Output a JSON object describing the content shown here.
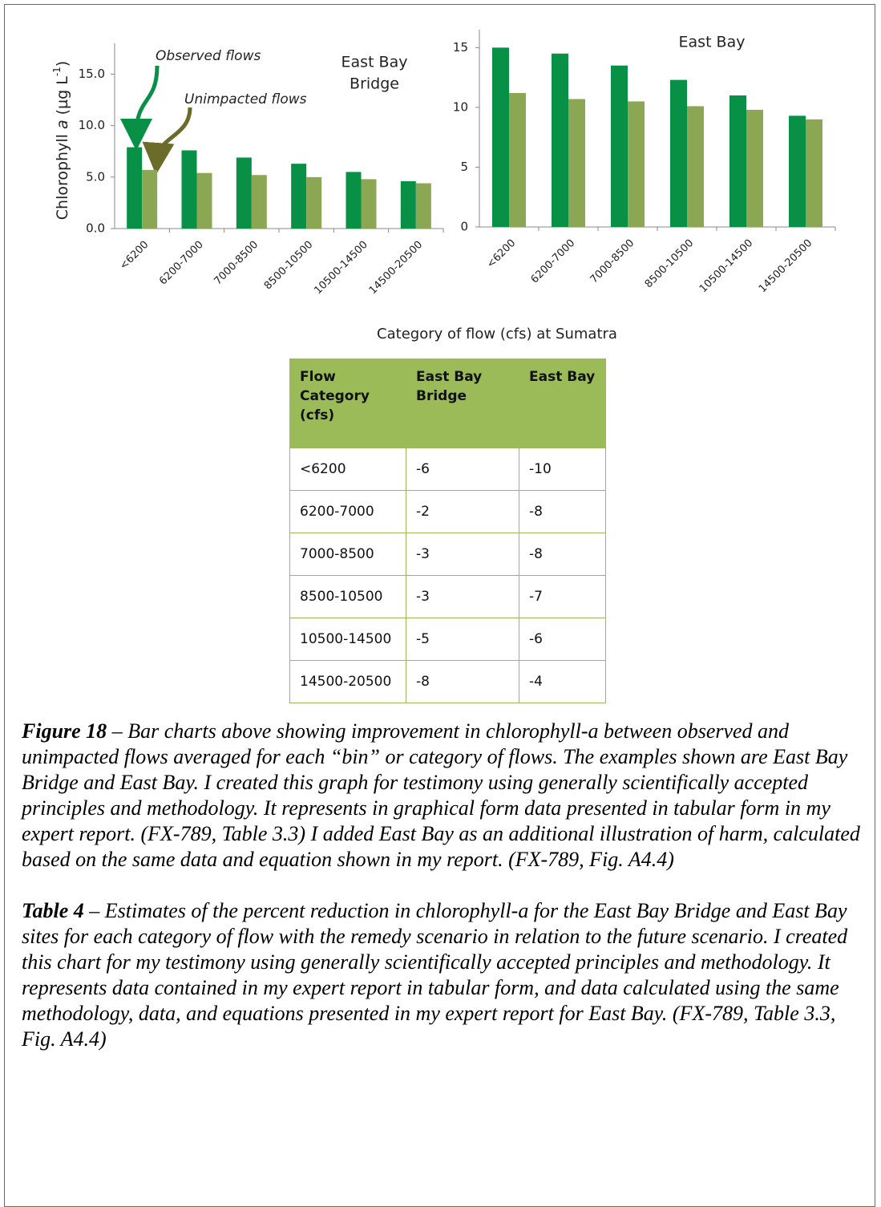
{
  "chart_data": [
    {
      "type": "bar",
      "title": [
        "East Bay",
        "Bridge"
      ],
      "ylabel": [
        "Chlorophyll ",
        "a",
        " (µg L",
        "-1",
        ")"
      ],
      "annotations": [
        "Observed flows",
        "Unimpacted flows"
      ],
      "categories": [
        "<6200",
        "6200-7000",
        "7000-8500",
        "8500-10500",
        "10500-14500",
        "14500-20500"
      ],
      "series": [
        {
          "name": "Observed flows",
          "color": "#089146",
          "values": [
            7.9,
            7.6,
            6.9,
            6.3,
            5.5,
            4.6
          ]
        },
        {
          "name": "Unimpacted flows",
          "color": "#8ba754",
          "values": [
            5.7,
            5.4,
            5.2,
            5.0,
            4.8,
            4.4
          ]
        }
      ],
      "ylim": [
        0,
        18
      ],
      "yticks": [
        {
          "value": 0,
          "label": "0.0"
        },
        {
          "value": 5,
          "label": "5.0"
        },
        {
          "value": 10,
          "label": "10.0"
        },
        {
          "value": 15,
          "label": "15.0"
        }
      ]
    },
    {
      "type": "bar",
      "title": [
        "East Bay"
      ],
      "categories": [
        "<6200",
        "6200-7000",
        "7000-8500",
        "8500-10500",
        "10500-14500",
        "14500-20500"
      ],
      "series": [
        {
          "name": "Observed flows",
          "color": "#089146",
          "values": [
            15.0,
            14.5,
            13.5,
            12.3,
            11.0,
            9.3
          ]
        },
        {
          "name": "Unimpacted flows",
          "color": "#8ba754",
          "values": [
            11.2,
            10.7,
            10.5,
            10.1,
            9.8,
            9.0
          ]
        }
      ],
      "ylim": [
        0,
        16.5
      ],
      "yticks": [
        0,
        5,
        10,
        15
      ]
    }
  ],
  "x_axis_label": "Category of flow (cfs) at Sumatra",
  "table": {
    "header": [
      [
        "Flow",
        "Category",
        "(cfs)"
      ],
      [
        "East Bay",
        "Bridge"
      ],
      [
        "East Bay"
      ]
    ],
    "rows": [
      [
        "<6200",
        "-6",
        "-10"
      ],
      [
        "6200-7000",
        "-2",
        "-8"
      ],
      [
        "7000-8500",
        "-3",
        "-8"
      ],
      [
        "8500-10500",
        "-3",
        "-7"
      ],
      [
        "10500-14500",
        "-5",
        "-6"
      ],
      [
        "14500-20500",
        "-8",
        "-4"
      ]
    ]
  },
  "captions": [
    {
      "lead": "Figure 18",
      "text": " – Bar charts above showing improvement in chlorophyll-a between observed and unimpacted flows averaged for each “bin” or category of flows. The examples shown are East Bay Bridge and East Bay.  I created this graph for testimony using generally scientifically accepted principles and methodology.  It represents in graphical form data presented in tabular form in my expert report. (FX-789, Table 3.3) I added East Bay as an additional illustration of harm, calculated based on the same data and equation shown in my report. (FX-789, Fig. A4.4)"
    },
    {
      "lead": "Table 4",
      "text": " – Estimates of the percent reduction in chlorophyll-a for the East Bay Bridge and East Bay sites for each category of flow with the remedy scenario in relation to the future scenario.  I created this chart for my testimony using generally scientifically accepted principles and methodology.  It represents  data contained in my expert report in tabular form, and data calculated using the same methodology, data, and equations presented in my expert report for East Bay. (FX-789, Table 3.3, Fig. A4.4)"
    }
  ]
}
